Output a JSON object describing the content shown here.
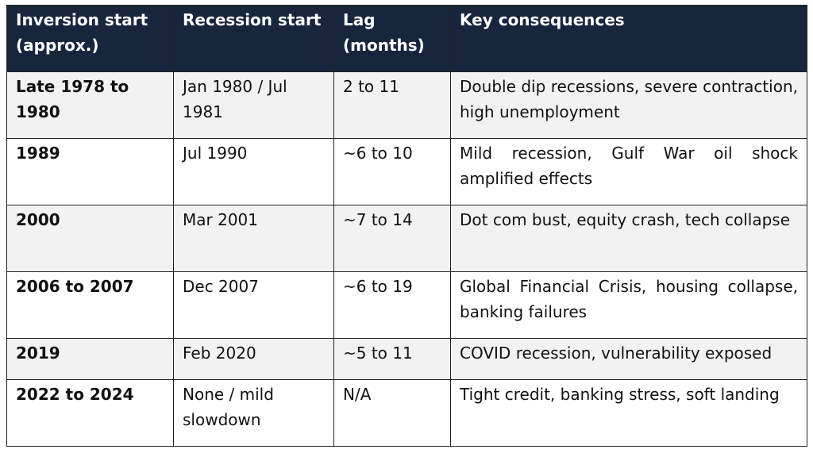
{
  "table": {
    "columns": [
      "Inversion start (approx.)",
      "Recession start",
      "Lag (months)",
      "Key consequences"
    ],
    "rows": [
      [
        "Late 1978 to 1980",
        "Jan 1980 / Jul 1981",
        "2 to 11",
        "Double dip recessions, severe contraction, high unemployment"
      ],
      [
        "1989",
        "Jul 1990",
        "~6 to 10",
        "Mild recession, Gulf War oil shock amplified effects"
      ],
      [
        "2000",
        "Mar 2001",
        "~7 to 14",
        "Dot com bust, equity crash, tech collapse"
      ],
      [
        "2006 to 2007",
        "Dec 2007",
        "~6 to 19",
        "Global Financial Crisis, housing collapse, banking failures"
      ],
      [
        "2019",
        "Feb 2020",
        "~5 to 11",
        "COVID recession, vulnerability exposed"
      ],
      [
        "2022 to 2024",
        "None / mild slowdown",
        "N/A",
        "Tight credit, banking stress, soft landing"
      ]
    ]
  }
}
